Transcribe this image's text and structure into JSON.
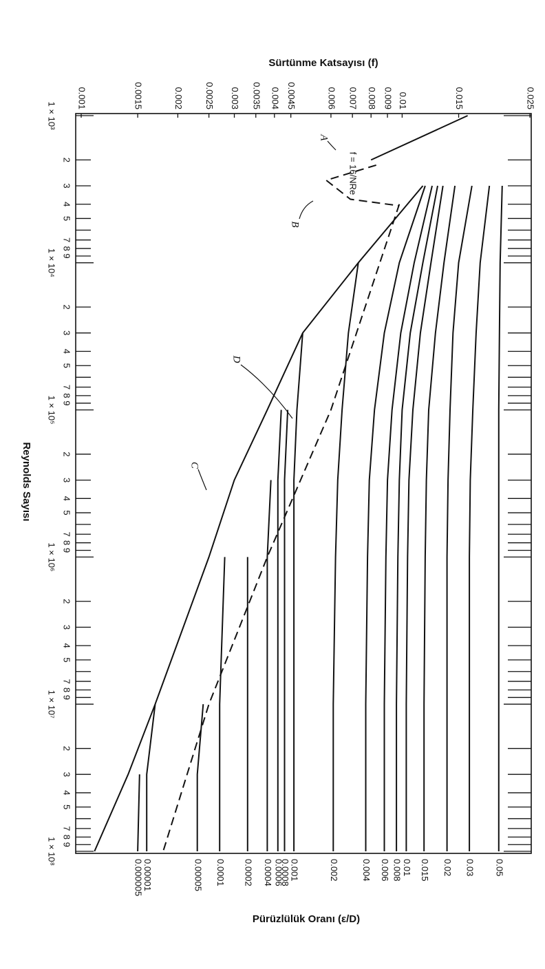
{
  "chart_data": {
    "type": "line",
    "ylabel": "Sürtünme Katsayısı (f)",
    "xlabel": "Reynolds Sayısı",
    "legend_title": "Pürüzlülük Oranı (ε/D)",
    "annotation": "f = 16/NRe",
    "xscale": "log",
    "yscale": "log",
    "xlim": [
      1000,
      100000000
    ],
    "ylim": [
      0.001,
      0.025
    ],
    "color": "#111",
    "yticks": [
      0.001,
      0.0015,
      0.002,
      0.0025,
      0.003,
      0.0035,
      0.004,
      0.0045,
      0.006,
      0.007,
      0.008,
      0.009,
      0.01,
      0.015,
      0.025
    ],
    "xticks": [
      {
        "value": 1000,
        "label": "1 × 10³"
      },
      {
        "value": 2000,
        "label": "2"
      },
      {
        "value": 3000,
        "label": "3"
      },
      {
        "value": 4000,
        "label": "4"
      },
      {
        "value": 5000,
        "label": "5"
      },
      {
        "value": 7000,
        "label": "7"
      },
      {
        "value": 8000,
        "label": "8"
      },
      {
        "value": 9000,
        "label": "9"
      },
      {
        "value": 10000,
        "label": "1 × 10⁴"
      },
      {
        "value": 20000,
        "label": "2"
      },
      {
        "value": 30000,
        "label": "3"
      },
      {
        "value": 40000,
        "label": "4"
      },
      {
        "value": 50000,
        "label": "5"
      },
      {
        "value": 70000,
        "label": "7"
      },
      {
        "value": 80000,
        "label": "8"
      },
      {
        "value": 90000,
        "label": "9"
      },
      {
        "value": 100000,
        "label": "1 × 10⁵"
      },
      {
        "value": 200000,
        "label": "2"
      },
      {
        "value": 300000,
        "label": "3"
      },
      {
        "value": 400000,
        "label": "4"
      },
      {
        "value": 500000,
        "label": "5"
      },
      {
        "value": 700000,
        "label": "7"
      },
      {
        "value": 800000,
        "label": "8"
      },
      {
        "value": 900000,
        "label": "9"
      },
      {
        "value": 1000000,
        "label": "1 × 10⁶"
      },
      {
        "value": 2000000,
        "label": "2"
      },
      {
        "value": 3000000,
        "label": "3"
      },
      {
        "value": 4000000,
        "label": "4"
      },
      {
        "value": 5000000,
        "label": "5"
      },
      {
        "value": 7000000,
        "label": "7"
      },
      {
        "value": 8000000,
        "label": "8"
      },
      {
        "value": 9000000,
        "label": "9"
      },
      {
        "value": 10000000,
        "label": "1 × 10⁷"
      },
      {
        "value": 20000000,
        "label": "2"
      },
      {
        "value": 30000000,
        "label": "3"
      },
      {
        "value": 40000000,
        "label": "4"
      },
      {
        "value": 50000000,
        "label": "5"
      },
      {
        "value": 70000000,
        "label": "7"
      },
      {
        "value": 80000000,
        "label": "8"
      },
      {
        "value": 90000000,
        "label": "9"
      },
      {
        "value": 100000000,
        "label": "1 × 10⁸"
      }
    ],
    "xminor": [
      6000,
      60000,
      600000,
      6000000,
      60000000
    ],
    "x": [
      3000,
      10000,
      30000,
      100000,
      300000,
      1000000,
      10000000,
      30000000,
      100000000
    ],
    "series": [
      {
        "name": "0.05",
        "values": [
          0.0205,
          0.0202,
          0.0201,
          0.02,
          0.02,
          0.02,
          0.02,
          0.02,
          0.02
        ]
      },
      {
        "name": "0.03",
        "values": [
          0.0187,
          0.0175,
          0.017,
          0.0166,
          0.0163,
          0.0162,
          0.0162,
          0.0162,
          0.0162
        ]
      },
      {
        "name": "0.02",
        "values": [
          0.0165,
          0.015,
          0.0144,
          0.0141,
          0.0139,
          0.0138,
          0.0138,
          0.0138,
          0.0138
        ]
      },
      {
        "name": "0.015",
        "values": [
          0.0146,
          0.0135,
          0.0127,
          0.0121,
          0.0119,
          0.0118,
          0.0117,
          0.0117,
          0.0117
        ]
      },
      {
        "name": "0.01",
        "values": [
          0.0134,
          0.0123,
          0.0114,
          0.0108,
          0.0105,
          0.0104,
          0.0103,
          0.0103,
          0.0103
        ]
      },
      {
        "name": "0.008",
        "values": [
          0.0129,
          0.0116,
          0.0106,
          0.01,
          0.0098,
          0.0097,
          0.0096,
          0.0096,
          0.0096
        ]
      },
      {
        "name": "0.006",
        "values": [
          0.0124,
          0.0109,
          0.0099,
          0.0093,
          0.009,
          0.0089,
          0.0088,
          0.0088,
          0.0088
        ]
      },
      {
        "name": "0.004",
        "values": [
          0.0118,
          0.0098,
          0.0088,
          0.0082,
          0.0079,
          0.0078,
          0.0077,
          0.0077,
          0.0077
        ]
      },
      {
        "name": "0.002",
        "values": [
          null,
          0.0073,
          0.0068,
          0.0065,
          0.0063,
          0.0062,
          0.0061,
          0.0061,
          0.0061
        ]
      },
      {
        "name": "0.001",
        "values": [
          null,
          null,
          0.0049,
          0.0047,
          0.0046,
          0.0046,
          0.0046,
          0.0046,
          0.0046
        ]
      },
      {
        "name": "0.0008",
        "values": [
          null,
          null,
          null,
          0.0044,
          0.0043,
          0.0043,
          0.0043,
          0.0043,
          0.0043
        ]
      },
      {
        "name": "0.0006",
        "values": [
          null,
          null,
          null,
          0.0042,
          0.0041,
          0.0041,
          0.0041,
          0.0041,
          0.0041
        ]
      },
      {
        "name": "0.0004",
        "values": [
          null,
          null,
          null,
          null,
          0.0039,
          0.0038,
          0.0038,
          0.0038,
          0.0038
        ]
      },
      {
        "name": "0.0002",
        "values": [
          null,
          null,
          null,
          null,
          null,
          0.0033,
          0.0033,
          0.0033,
          0.0033
        ]
      },
      {
        "name": "0.0001",
        "values": [
          null,
          null,
          null,
          null,
          null,
          0.0028,
          0.0027,
          0.0027,
          0.0027
        ]
      },
      {
        "name": "0.00005",
        "values": [
          null,
          null,
          null,
          null,
          null,
          null,
          0.0024,
          0.0023,
          0.0023
        ]
      },
      {
        "name": "0.00001",
        "values": [
          null,
          null,
          null,
          null,
          null,
          null,
          0.0017,
          0.0016,
          0.0016
        ]
      },
      {
        "name": "0.000005",
        "values": [
          null,
          null,
          null,
          null,
          null,
          null,
          null,
          0.00152,
          0.0015
        ]
      },
      {
        "name": "C",
        "values": [
          0.0116,
          0.0073,
          0.0049,
          0.0038,
          0.003,
          0.0025,
          0.0017,
          0.0014,
          0.0011
        ]
      },
      {
        "name": "A",
        "x": [
          1000,
          2000
        ],
        "values": [
          0.016,
          0.008
        ]
      },
      {
        "name": "B",
        "dash": true,
        "x": [
          2170,
          2750,
          3700,
          4100
        ],
        "values": [
          0.0083,
          0.0058,
          0.0069,
          0.0098
        ]
      },
      {
        "name": "D",
        "dash": true,
        "x": [
          4000,
          100000,
          1000000,
          10000000,
          100000000
        ],
        "values": [
          0.0098,
          0.006,
          0.0038,
          0.0025,
          0.0018
        ]
      }
    ]
  }
}
